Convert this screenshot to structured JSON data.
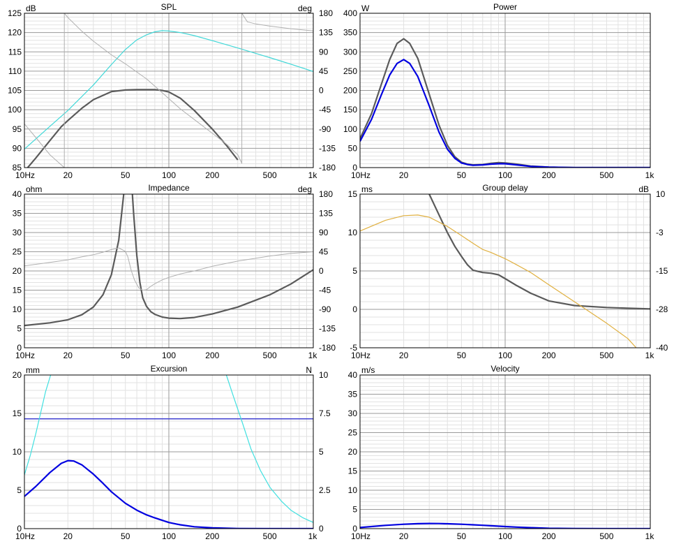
{
  "chart_data": [
    {
      "type": "line",
      "title": "SPL",
      "left_unit": "dB",
      "right_unit": "deg",
      "xlim": [
        10,
        1000
      ],
      "x_ticks": [
        "10Hz",
        "20",
        "50",
        "100",
        "200",
        "500",
        "1k"
      ],
      "ylim_left": [
        85,
        125
      ],
      "ylim_right": [
        -180,
        180
      ],
      "y_ticks_left": [
        "85",
        "90",
        "95",
        "100",
        "105",
        "110",
        "115",
        "120",
        "125"
      ],
      "y_ticks_right": [
        "-180",
        "-135",
        "-90",
        "-45",
        "0",
        "45",
        "90",
        "135",
        "180"
      ],
      "series": [
        {
          "name": "spl",
          "axis": "left",
          "color": "#5a5a5a",
          "width": 2.2,
          "x": [
            10,
            12,
            15,
            18,
            20,
            25,
            30,
            40,
            50,
            60,
            70,
            80,
            90,
            100,
            120,
            150,
            200,
            250,
            300
          ],
          "y": [
            84,
            87.5,
            92,
            95.6,
            97.2,
            100.4,
            102.6,
            104.7,
            105.1,
            105.2,
            105.2,
            105.2,
            105,
            104.6,
            103,
            99.8,
            95,
            90.8,
            87
          ]
        },
        {
          "name": "spl-excursion-limited",
          "axis": "left",
          "color": "#40d8d8",
          "width": 1.2,
          "x": [
            10,
            15,
            20,
            30,
            40,
            50,
            60,
            70,
            80,
            90,
            100,
            110,
            120,
            150,
            200,
            300,
            500,
            700,
            1000
          ],
          "y": [
            89.8,
            95.7,
            99.8,
            106.4,
            111.7,
            115.6,
            118.1,
            119.4,
            120.2,
            120.5,
            120.4,
            120.2,
            120,
            119.2,
            117.9,
            116,
            113.5,
            111.8,
            109.9
          ]
        },
        {
          "name": "phase-a",
          "axis": "right",
          "color": "#b0b0b0",
          "width": 1.0,
          "x": [
            10,
            12,
            15,
            18.9
          ],
          "y": [
            -78,
            -110,
            -150,
            -180
          ]
        },
        {
          "name": "phase-b",
          "axis": "right",
          "color": "#b0b0b0",
          "width": 1.0,
          "x": [
            18.9,
            18.9,
            20,
            25,
            30,
            40,
            50,
            60,
            70,
            80,
            100,
            120,
            150,
            200,
            250,
            300,
            320,
            320,
            350,
            400,
            500,
            700,
            1000
          ],
          "y": [
            -180,
            180,
            170,
            138,
            115,
            83,
            62,
            43,
            27,
            10,
            -19,
            -43,
            -68,
            -100,
            -125,
            -150,
            -170,
            180,
            160,
            155,
            150,
            144,
            139
          ]
        }
      ]
    },
    {
      "type": "line",
      "title": "Power",
      "left_unit": "W",
      "xlim": [
        10,
        1000
      ],
      "x_ticks": [
        "10Hz",
        "20",
        "50",
        "100",
        "200",
        "500",
        "1k"
      ],
      "ylim_left": [
        0,
        400
      ],
      "y_ticks_left": [
        "0",
        "50",
        "100",
        "150",
        "200",
        "250",
        "300",
        "350",
        "400"
      ],
      "series": [
        {
          "name": "power-total",
          "axis": "left",
          "color": "#5a5a5a",
          "width": 2.2,
          "x": [
            10,
            12,
            14,
            16,
            18,
            20,
            22,
            25,
            30,
            35,
            40,
            45,
            50,
            55,
            60,
            70,
            80,
            90,
            100,
            120,
            150,
            200,
            300,
            1000
          ],
          "y": [
            75,
            140,
            215,
            280,
            322,
            334,
            322,
            283,
            190,
            110,
            58,
            28,
            14,
            9,
            7,
            8,
            11,
            13,
            12,
            9,
            4,
            1,
            0,
            0
          ]
        },
        {
          "name": "power-limited",
          "axis": "left",
          "color": "#0000e0",
          "width": 2.2,
          "x": [
            10,
            12,
            14,
            16,
            18,
            20,
            22,
            25,
            30,
            35,
            40,
            45,
            50,
            55,
            60,
            70,
            80,
            90,
            100,
            120,
            150,
            200,
            300,
            1000
          ],
          "y": [
            68,
            125,
            188,
            240,
            270,
            280,
            270,
            236,
            160,
            92,
            48,
            24,
            12,
            8,
            6,
            7,
            9,
            10,
            10,
            7,
            3,
            1,
            0,
            0
          ]
        }
      ]
    },
    {
      "type": "line",
      "title": "Impedance",
      "left_unit": "ohm",
      "right_unit": "deg",
      "xlim": [
        10,
        1000
      ],
      "x_ticks": [
        "10Hz",
        "20",
        "50",
        "100",
        "200",
        "500",
        "1k"
      ],
      "ylim_left": [
        0,
        40
      ],
      "ylim_right": [
        -180,
        180
      ],
      "y_ticks_left": [
        "0",
        "5",
        "10",
        "15",
        "20",
        "25",
        "30",
        "35",
        "40"
      ],
      "y_ticks_right": [
        "-180",
        "-135",
        "-90",
        "-45",
        "0",
        "45",
        "90",
        "135",
        "180"
      ],
      "series": [
        {
          "name": "impedance",
          "axis": "left",
          "color": "#5a5a5a",
          "width": 2.2,
          "x": [
            10,
            15,
            20,
            25,
            30,
            35,
            40,
            45,
            50,
            55,
            57,
            60,
            63,
            66,
            70,
            75,
            80,
            90,
            100,
            120,
            150,
            200,
            300,
            500,
            700,
            1000
          ],
          "y": [
            5.8,
            6.5,
            7.3,
            8.6,
            10.6,
            13.8,
            19,
            28,
            44,
            44,
            35,
            24,
            17,
            13,
            10.8,
            9.4,
            8.7,
            8,
            7.7,
            7.6,
            7.9,
            8.8,
            10.6,
            13.8,
            16.6,
            20.3
          ]
        },
        {
          "name": "impedance-phase",
          "axis": "right",
          "color": "#b0b0b0",
          "width": 1.0,
          "x": [
            10,
            15,
            20,
            25,
            30,
            35,
            40,
            45,
            50,
            52,
            55,
            58,
            62,
            66,
            70,
            75,
            80,
            90,
            100,
            120,
            150,
            200,
            300,
            500,
            700,
            1000
          ],
          "y": [
            12,
            20,
            26,
            33,
            38,
            44,
            50,
            54,
            46,
            33,
            0,
            -22,
            -40,
            -45,
            -44,
            -36,
            -30,
            -21,
            -15,
            -7,
            0,
            11,
            23,
            35,
            41,
            45
          ]
        }
      ]
    },
    {
      "type": "line",
      "title": "Group delay",
      "left_unit": "ms",
      "right_unit": "dB",
      "xlim": [
        10,
        1000
      ],
      "x_ticks": [
        "10Hz",
        "20",
        "50",
        "100",
        "200",
        "500",
        "1k"
      ],
      "ylim_left": [
        -5,
        15
      ],
      "ylim_right": [
        -40,
        10
      ],
      "y_ticks_left": [
        "-5",
        "0",
        "5",
        "10",
        "15"
      ],
      "y_ticks_right": [
        "-40",
        "-28",
        "-15",
        "-3",
        "10"
      ],
      "series": [
        {
          "name": "group-delay",
          "axis": "left",
          "color": "#5a5a5a",
          "width": 2.2,
          "x": [
            30,
            35,
            40,
            45,
            50,
            55,
            60,
            70,
            80,
            90,
            100,
            120,
            150,
            200,
            300,
            500,
            700,
            1000
          ],
          "y": [
            15,
            12.3,
            10,
            8.2,
            6.9,
            5.8,
            5.1,
            4.8,
            4.7,
            4.5,
            4,
            3.1,
            2.1,
            1.1,
            0.5,
            0.25,
            0.15,
            0.05
          ]
        },
        {
          "name": "group-delay-spl",
          "axis": "right",
          "color": "#e0b040",
          "width": 1.2,
          "x": [
            10,
            15,
            20,
            25,
            30,
            40,
            50,
            60,
            70,
            80,
            100,
            120,
            150,
            200,
            300,
            500,
            700,
            800
          ],
          "y": [
            -2,
            1.5,
            3,
            3.2,
            2.5,
            -0.5,
            -3.5,
            -6,
            -8,
            -9,
            -11,
            -13,
            -15.5,
            -19.5,
            -25,
            -32,
            -37,
            -40
          ]
        }
      ]
    },
    {
      "type": "line",
      "title": "Excursion",
      "left_unit": "mm",
      "right_unit": "N",
      "xlim": [
        10,
        1000
      ],
      "x_ticks": [
        "10Hz",
        "20",
        "50",
        "100",
        "200",
        "500",
        "1k"
      ],
      "ylim_left": [
        0,
        20
      ],
      "ylim_right": [
        0,
        10
      ],
      "y_ticks_left": [
        "0",
        "5",
        "10",
        "15",
        "20"
      ],
      "y_ticks_right": [
        "0",
        "2.5",
        "5",
        "7.5",
        "10"
      ],
      "series": [
        {
          "name": "excursion-limit",
          "axis": "left",
          "color": "#4040d0",
          "width": 1.5,
          "x": [
            10,
            1000
          ],
          "y": [
            14.3,
            14.3
          ]
        },
        {
          "name": "excursion",
          "axis": "left",
          "color": "#0000e0",
          "width": 2.2,
          "x": [
            10,
            12,
            15,
            18,
            20,
            22,
            25,
            30,
            35,
            40,
            50,
            60,
            70,
            80,
            100,
            120,
            150,
            200,
            300,
            500,
            1000
          ],
          "y": [
            4.2,
            5.5,
            7.3,
            8.5,
            8.85,
            8.8,
            8.3,
            7.1,
            5.9,
            4.8,
            3.3,
            2.4,
            1.8,
            1.4,
            0.8,
            0.5,
            0.25,
            0.1,
            0.02,
            0,
            0
          ]
        },
        {
          "name": "force",
          "axis": "right",
          "color": "#40e0e0",
          "width": 1.2,
          "x": [
            10,
            11,
            12,
            13,
            14,
            15.2
          ],
          "y": [
            3.5,
            4.8,
            6.2,
            7.6,
            8.9,
            10
          ]
        },
        {
          "name": "force-high",
          "axis": "right",
          "color": "#40e0e0",
          "width": 1.2,
          "x": [
            250,
            280,
            320,
            370,
            430,
            500,
            600,
            700,
            850,
            1000
          ],
          "y": [
            10,
            8.6,
            7,
            5.2,
            3.8,
            2.7,
            1.8,
            1.2,
            0.7,
            0.4
          ]
        }
      ]
    },
    {
      "type": "line",
      "title": "Velocity",
      "left_unit": "m/s",
      "xlim": [
        10,
        1000
      ],
      "x_ticks": [
        "10Hz",
        "20",
        "50",
        "100",
        "200",
        "500",
        "1k"
      ],
      "ylim_left": [
        0,
        40
      ],
      "y_ticks_left": [
        "0",
        "5",
        "10",
        "15",
        "20",
        "25",
        "30",
        "35",
        "40"
      ],
      "series": [
        {
          "name": "velocity",
          "axis": "left",
          "color": "#0000e0",
          "width": 2.2,
          "x": [
            10,
            15,
            20,
            25,
            30,
            35,
            40,
            50,
            60,
            70,
            80,
            100,
            120,
            150,
            200,
            300,
            500,
            1000
          ],
          "y": [
            0.3,
            0.85,
            1.15,
            1.3,
            1.35,
            1.33,
            1.28,
            1.15,
            1.0,
            0.88,
            0.75,
            0.55,
            0.4,
            0.25,
            0.1,
            0.03,
            0,
            0
          ]
        }
      ]
    }
  ]
}
